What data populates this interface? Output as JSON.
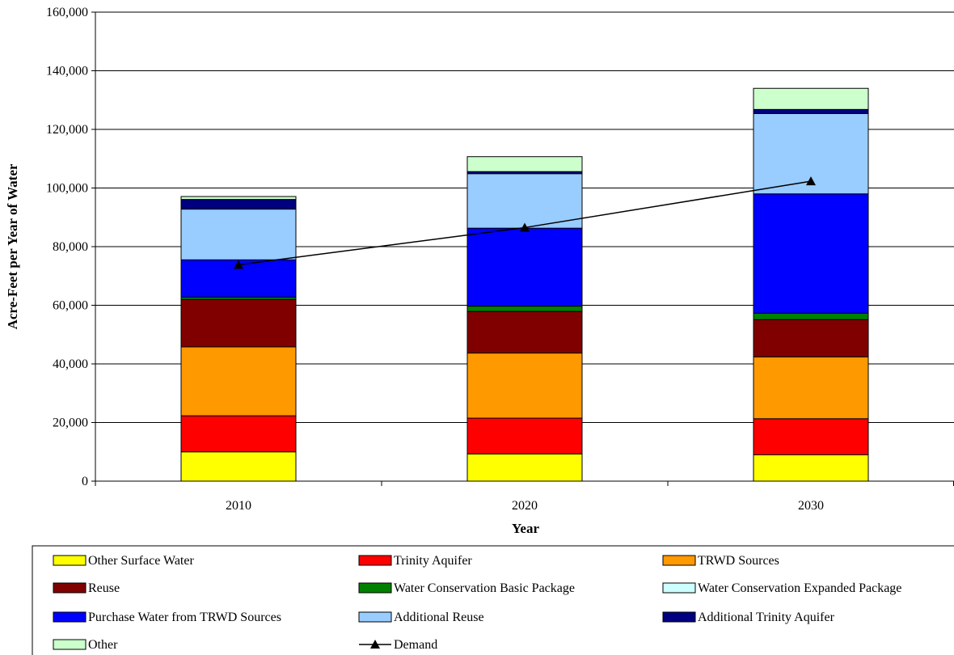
{
  "chart_data": {
    "type": "bar",
    "stacked": true,
    "xlabel": "Year",
    "ylabel": "Acre-Feet per Year of Water",
    "ylim": [
      0,
      160000
    ],
    "yticks": [
      0,
      20000,
      40000,
      60000,
      80000,
      100000,
      120000,
      140000,
      160000
    ],
    "ytick_labels": [
      "0",
      "20,000",
      "40,000",
      "60,000",
      "80,000",
      "100,000",
      "120,000",
      "140,000",
      "160,000"
    ],
    "grid": true,
    "legend_position": "bottom",
    "categories": [
      "2010",
      "2020",
      "2030"
    ],
    "series": [
      {
        "name": "Other Surface Water",
        "color": "#FFFF00",
        "values": [
          10000,
          9300,
          9000
        ]
      },
      {
        "name": "Trinity Aquifer",
        "color": "#FF0000",
        "values": [
          12300,
          12200,
          12300
        ]
      },
      {
        "name": "TRWD Sources",
        "color": "#FF9900",
        "values": [
          23500,
          22200,
          21100
        ]
      },
      {
        "name": "Reuse",
        "color": "#800000",
        "values": [
          16200,
          14200,
          12700
        ]
      },
      {
        "name": "Water Conservation Basic Package",
        "color": "#008000",
        "values": [
          800,
          1800,
          2200
        ]
      },
      {
        "name": "Water Conservation Expanded Package",
        "color": "#CCFFFF",
        "values": [
          0,
          0,
          0
        ]
      },
      {
        "name": "Purchase Water from TRWD Sources",
        "color": "#0000FF",
        "values": [
          12700,
          26600,
          40700
        ]
      },
      {
        "name": "Additional Reuse",
        "color": "#99CCFF",
        "values": [
          17300,
          18600,
          27400
        ]
      },
      {
        "name": "Additional Trinity Aquifer",
        "color": "#000080",
        "values": [
          3300,
          700,
          1400
        ]
      },
      {
        "name": "Other",
        "color": "#CCFFCC",
        "values": [
          1000,
          5100,
          7200
        ]
      }
    ],
    "line_series": {
      "name": "Demand",
      "color": "#000000",
      "marker": "triangle",
      "values": [
        73800,
        86500,
        102300
      ]
    }
  },
  "colors": {
    "plot_border": "#000000",
    "gridline": "#000000"
  }
}
